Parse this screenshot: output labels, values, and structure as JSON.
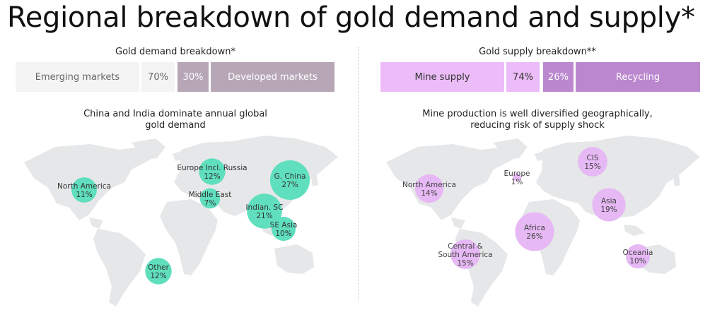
{
  "title": "Regional breakdown of gold demand and supply*",
  "colors": {
    "demand_bubble": "#5fdfbd",
    "demand_label": "#333333",
    "supply_bubble": "#e6b8f4",
    "supply_label": "#444444",
    "map_land": "#e6e7e8",
    "emerging_bg": "#f4f4f5",
    "developed_bg": "#b6a6b6",
    "mine_bg": "#ebbcf7",
    "recycling_bg": "#bb88cf"
  },
  "chart_data": [
    {
      "type": "stacked-bar",
      "title": "Gold demand breakdown*",
      "segments": [
        {
          "name": "Emerging markets",
          "value": 70,
          "value_label": "70%"
        },
        {
          "name": "Developed markets",
          "value": 30,
          "value_label": "30%"
        }
      ]
    },
    {
      "type": "stacked-bar",
      "title": "Gold supply breakdown**",
      "segments": [
        {
          "name": "Mine supply",
          "value": 74,
          "value_label": "74%"
        },
        {
          "name": "Recycling",
          "value": 26,
          "value_label": "26%"
        }
      ]
    },
    {
      "type": "bubble-map",
      "title_lines": [
        "China and India dominate annual global",
        "gold demand"
      ],
      "points": [
        {
          "region": "North America",
          "value": 11,
          "label": "11%"
        },
        {
          "region": "Europe Incl. Russia",
          "value": 12,
          "label": "12%"
        },
        {
          "region": "G. China",
          "value": 27,
          "label": "27%"
        },
        {
          "region": "Middle East",
          "value": 7,
          "label": "7%"
        },
        {
          "region": "Indian. SC",
          "value": 21,
          "label": "21%"
        },
        {
          "region": "SE Asia",
          "value": 10,
          "label": "10%"
        },
        {
          "region": "Other",
          "value": 12,
          "label": "12%"
        }
      ]
    },
    {
      "type": "bubble-map",
      "title_lines": [
        "Mine production is well diversified geographically,",
        "reducing risk of supply shock"
      ],
      "points": [
        {
          "region": "North America",
          "value": 14,
          "label": "14%"
        },
        {
          "region": "Europe",
          "value": 1,
          "label": "1%"
        },
        {
          "region": "CIS",
          "value": 15,
          "label": "15%"
        },
        {
          "region": "Asia",
          "value": 19,
          "label": "19%"
        },
        {
          "region": "Africa",
          "value": 26,
          "label": "26%"
        },
        {
          "region": "Central & South America",
          "value": 15,
          "label": "15%"
        },
        {
          "region": "Oceania",
          "value": 10,
          "label": "10%"
        }
      ]
    }
  ]
}
